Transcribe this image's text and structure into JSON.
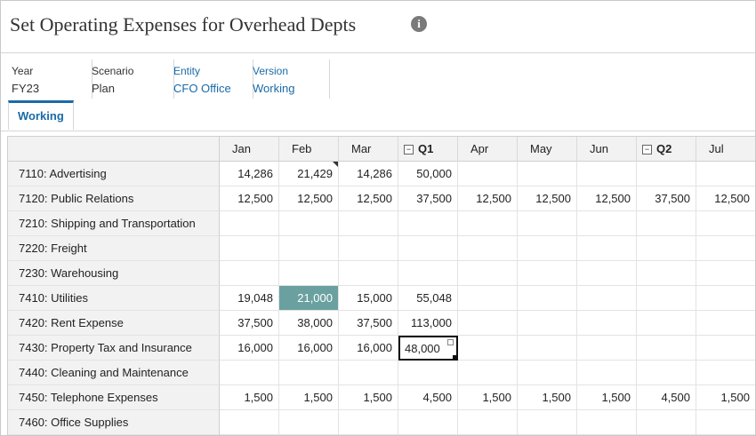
{
  "title": "Set Operating Expenses for Overhead Depts",
  "pov": [
    {
      "label": "Year",
      "value": "FY23",
      "link": false
    },
    {
      "label": "Scenario",
      "value": "Plan",
      "link": false
    },
    {
      "label": "Entity",
      "value": "CFO Office",
      "link": true
    },
    {
      "label": "Version",
      "value": "Working",
      "link": true
    }
  ],
  "tabs": [
    "Working"
  ],
  "grid": {
    "columns": [
      {
        "label": "Jan",
        "summary": false
      },
      {
        "label": "Feb",
        "summary": false
      },
      {
        "label": "Mar",
        "summary": false
      },
      {
        "label": "Q1",
        "summary": true,
        "toggle": "⊟"
      },
      {
        "label": "Apr",
        "summary": false
      },
      {
        "label": "May",
        "summary": false
      },
      {
        "label": "Jun",
        "summary": false
      },
      {
        "label": "Q2",
        "summary": true,
        "toggle": "⊟"
      },
      {
        "label": "Jul",
        "summary": false
      }
    ],
    "rows": [
      {
        "label": "7110: Advertising",
        "values": [
          "14,286",
          "21,429",
          "14,286",
          "50,000",
          "",
          "",
          "",
          "",
          ""
        ]
      },
      {
        "label": "7120: Public Relations",
        "values": [
          "12,500",
          "12,500",
          "12,500",
          "37,500",
          "12,500",
          "12,500",
          "12,500",
          "37,500",
          "12,500"
        ]
      },
      {
        "label": "7210: Shipping and Transportation",
        "values": [
          "",
          "",
          "",
          "",
          "",
          "",
          "",
          "",
          ""
        ]
      },
      {
        "label": "7220: Freight",
        "values": [
          "",
          "",
          "",
          "",
          "",
          "",
          "",
          "",
          ""
        ]
      },
      {
        "label": "7230: Warehousing",
        "values": [
          "",
          "",
          "",
          "",
          "",
          "",
          "",
          "",
          ""
        ]
      },
      {
        "label": "7410: Utilities",
        "values": [
          "19,048",
          "21,000",
          "15,000",
          "55,048",
          "",
          "",
          "",
          "",
          ""
        ]
      },
      {
        "label": "7420: Rent Expense",
        "values": [
          "37,500",
          "38,000",
          "37,500",
          "113,000",
          "",
          "",
          "",
          "",
          ""
        ]
      },
      {
        "label": "7430: Property Tax and Insurance",
        "values": [
          "16,000",
          "16,000",
          "16,000",
          "48,000",
          "",
          "",
          "",
          "",
          ""
        ]
      },
      {
        "label": "7440: Cleaning and Maintenance",
        "values": [
          "",
          "",
          "",
          "",
          "",
          "",
          "",
          "",
          ""
        ]
      },
      {
        "label": "7450: Telephone Expenses",
        "values": [
          "1,500",
          "1,500",
          "1,500",
          "4,500",
          "1,500",
          "1,500",
          "1,500",
          "4,500",
          "1,500"
        ]
      },
      {
        "label": "7460: Office Supplies",
        "values": [
          "",
          "",
          "",
          "",
          "",
          "",
          "",
          "",
          ""
        ]
      }
    ],
    "highlighted_cell": {
      "row": 5,
      "col": 1,
      "color": "#6aa1a0"
    },
    "selected_cell": {
      "row": 7,
      "col": 3
    },
    "comment_cell": {
      "row": 0,
      "col": 1
    }
  },
  "colors": {
    "link": "#1a6aa8",
    "header_bg": "#f2f2f2"
  },
  "icons": {
    "info": "info-icon",
    "collapse": "collapse-icon"
  }
}
